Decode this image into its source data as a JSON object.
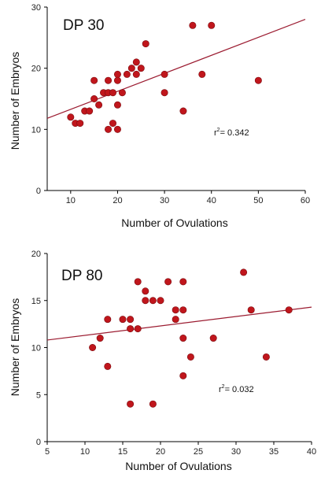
{
  "chart_data": [
    {
      "type": "scatter",
      "title": "DP 30",
      "xlabel": "Number of Ovulations",
      "ylabel": "Number of Embryos",
      "xlim": [
        5,
        60
      ],
      "ylim": [
        0,
        30
      ],
      "xticks": [
        10,
        20,
        30,
        40,
        50,
        60
      ],
      "yticks": [
        0,
        10,
        20,
        30
      ],
      "r2_label": "r",
      "r2_sup": "2",
      "r2_value": "= 0.342",
      "marker_color": "#c0161c",
      "line_color": "#9b1b30",
      "trendline": {
        "x": [
          5,
          60
        ],
        "y": [
          11.8,
          28.0
        ]
      },
      "points": [
        {
          "x": 10,
          "y": 12
        },
        {
          "x": 11,
          "y": 11
        },
        {
          "x": 12,
          "y": 11
        },
        {
          "x": 13,
          "y": 13
        },
        {
          "x": 14,
          "y": 13
        },
        {
          "x": 15,
          "y": 18
        },
        {
          "x": 15,
          "y": 15
        },
        {
          "x": 16,
          "y": 14
        },
        {
          "x": 17,
          "y": 16
        },
        {
          "x": 18,
          "y": 18
        },
        {
          "x": 18,
          "y": 16
        },
        {
          "x": 18,
          "y": 10
        },
        {
          "x": 19,
          "y": 16
        },
        {
          "x": 19,
          "y": 11
        },
        {
          "x": 20,
          "y": 19
        },
        {
          "x": 20,
          "y": 18
        },
        {
          "x": 20,
          "y": 14
        },
        {
          "x": 20,
          "y": 10
        },
        {
          "x": 21,
          "y": 16
        },
        {
          "x": 22,
          "y": 19
        },
        {
          "x": 23,
          "y": 20
        },
        {
          "x": 24,
          "y": 21
        },
        {
          "x": 24,
          "y": 19
        },
        {
          "x": 25,
          "y": 20
        },
        {
          "x": 26,
          "y": 24
        },
        {
          "x": 30,
          "y": 19
        },
        {
          "x": 30,
          "y": 16
        },
        {
          "x": 34,
          "y": 13
        },
        {
          "x": 36,
          "y": 27
        },
        {
          "x": 38,
          "y": 19
        },
        {
          "x": 40,
          "y": 27
        },
        {
          "x": 50,
          "y": 18
        }
      ]
    },
    {
      "type": "scatter",
      "title": "DP 80",
      "xlabel": "Number of Ovulations",
      "ylabel": "Number of Embryos",
      "xlim": [
        5,
        40
      ],
      "ylim": [
        0,
        20
      ],
      "xticks": [
        5,
        10,
        15,
        20,
        25,
        30,
        35,
        40
      ],
      "yticks": [
        0,
        5,
        10,
        15,
        20
      ],
      "r2_label": "r",
      "r2_sup": "2",
      "r2_value": "= 0.032",
      "marker_color": "#c0161c",
      "line_color": "#9b1b30",
      "trendline": {
        "x": [
          5,
          40
        ],
        "y": [
          10.8,
          14.3
        ]
      },
      "points": [
        {
          "x": 11,
          "y": 10
        },
        {
          "x": 12,
          "y": 11
        },
        {
          "x": 13,
          "y": 13
        },
        {
          "x": 13,
          "y": 8
        },
        {
          "x": 15,
          "y": 13
        },
        {
          "x": 16,
          "y": 13
        },
        {
          "x": 16,
          "y": 12
        },
        {
          "x": 16,
          "y": 4
        },
        {
          "x": 17,
          "y": 17
        },
        {
          "x": 17,
          "y": 12
        },
        {
          "x": 18,
          "y": 16
        },
        {
          "x": 18,
          "y": 15
        },
        {
          "x": 19,
          "y": 15
        },
        {
          "x": 19,
          "y": 4
        },
        {
          "x": 20,
          "y": 15
        },
        {
          "x": 21,
          "y": 17
        },
        {
          "x": 22,
          "y": 14
        },
        {
          "x": 22,
          "y": 13
        },
        {
          "x": 23,
          "y": 17
        },
        {
          "x": 23,
          "y": 14
        },
        {
          "x": 23,
          "y": 11
        },
        {
          "x": 23,
          "y": 7
        },
        {
          "x": 24,
          "y": 9
        },
        {
          "x": 27,
          "y": 11
        },
        {
          "x": 31,
          "y": 18
        },
        {
          "x": 32,
          "y": 14
        },
        {
          "x": 34,
          "y": 9
        },
        {
          "x": 37,
          "y": 14
        }
      ]
    }
  ]
}
